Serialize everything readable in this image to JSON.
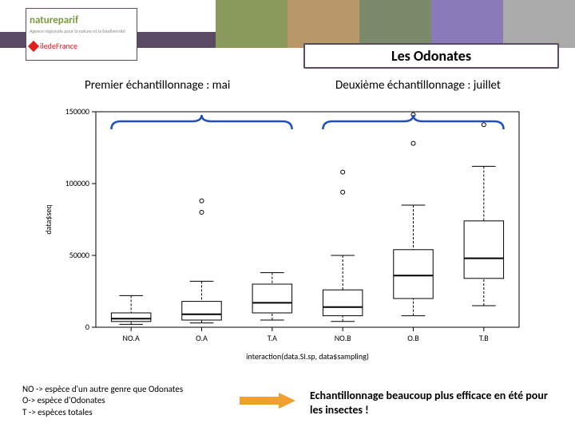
{
  "header": {
    "logo_primary": "nature",
    "logo_primary_suffix": "parif",
    "logo_primary_sub": "Agence régionale pour la nature et la biodiversité",
    "logo_secondary": "îledeFrance",
    "title": "Les Odonates"
  },
  "photo_colors": [
    "#8a9a5a",
    "#b89868",
    "#7a8a6a",
    "#8a7aba",
    "#aaa"
  ],
  "subtitle_left": "Premier échantillonnage : mai",
  "subtitle_right": "Deuxième échantillonnage : juillet",
  "chart": {
    "type": "boxplot",
    "ylabel": "data$seq",
    "xlabel": "interaction(data.SI.sp, data$sampling)",
    "ylim": [
      0,
      150000
    ],
    "yticks": [
      0,
      50000,
      100000,
      150000
    ],
    "ytick_labels": [
      "0",
      "50000",
      "100000",
      "150000"
    ],
    "categories": [
      "NO.A",
      "O.A",
      "T.A",
      "NO.B",
      "O.B",
      "T.B"
    ],
    "background_color": "#ffffff",
    "box_fill": "#ffffff",
    "line_color": "#000000",
    "outlier_marker": "circle",
    "axis_fontsize": 10,
    "boxes": [
      {
        "min": 2000,
        "q1": 4000,
        "median": 6000,
        "q3": 10000,
        "max": 22000,
        "outliers": []
      },
      {
        "min": 3000,
        "q1": 5000,
        "median": 9000,
        "q3": 18000,
        "max": 32000,
        "outliers": [
          80000,
          88000
        ]
      },
      {
        "min": 5000,
        "q1": 10000,
        "median": 17000,
        "q3": 30000,
        "max": 38000,
        "outliers": []
      },
      {
        "min": 4000,
        "q1": 8000,
        "median": 14000,
        "q3": 26000,
        "max": 50000,
        "outliers": [
          94000,
          108000
        ]
      },
      {
        "min": 8000,
        "q1": 20000,
        "median": 36000,
        "q3": 54000,
        "max": 85000,
        "outliers": [
          128000,
          148000
        ]
      },
      {
        "min": 15000,
        "q1": 34000,
        "median": 48000,
        "q3": 74000,
        "max": 112000,
        "outliers": [
          141000
        ]
      }
    ],
    "brace_color": "#2050c0"
  },
  "legend": {
    "line1": "NO -> espèce d'un autre genre que Odonates",
    "line2": "O-> espèce d'Odonates",
    "line3": "T -> espèces totales"
  },
  "conclusion": "Echantillonnage beaucoup plus efficace en été pour les insectes !",
  "arrow_color": "#f0a030",
  "banner_color": "#5a4a63"
}
